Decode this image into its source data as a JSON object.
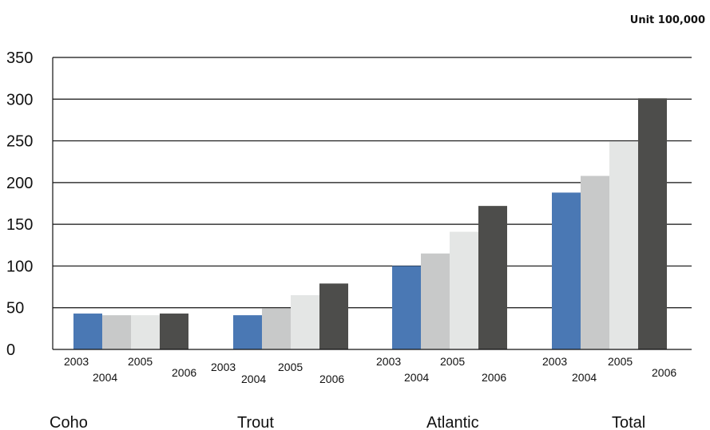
{
  "chart_data": {
    "type": "bar",
    "unit_label": "Unit 100,000",
    "categories": [
      "Coho",
      "Trout",
      "Atlantic",
      "Total"
    ],
    "series": [
      {
        "name": "2003",
        "color": "#4a78b4",
        "values": [
          43,
          41,
          100,
          188
        ]
      },
      {
        "name": "2004",
        "color": "#c8c9c9",
        "values": [
          41,
          49,
          115,
          208
        ]
      },
      {
        "name": "2005",
        "color": "#e4e6e5",
        "values": [
          41,
          65,
          141,
          249
        ]
      },
      {
        "name": "2006",
        "color": "#4d4d4b",
        "values": [
          43,
          79,
          172,
          301
        ]
      }
    ],
    "ylim": [
      0,
      350
    ],
    "yticks": [
      0,
      50,
      100,
      150,
      200,
      250,
      300,
      350
    ],
    "grid": true,
    "legend": "none"
  }
}
